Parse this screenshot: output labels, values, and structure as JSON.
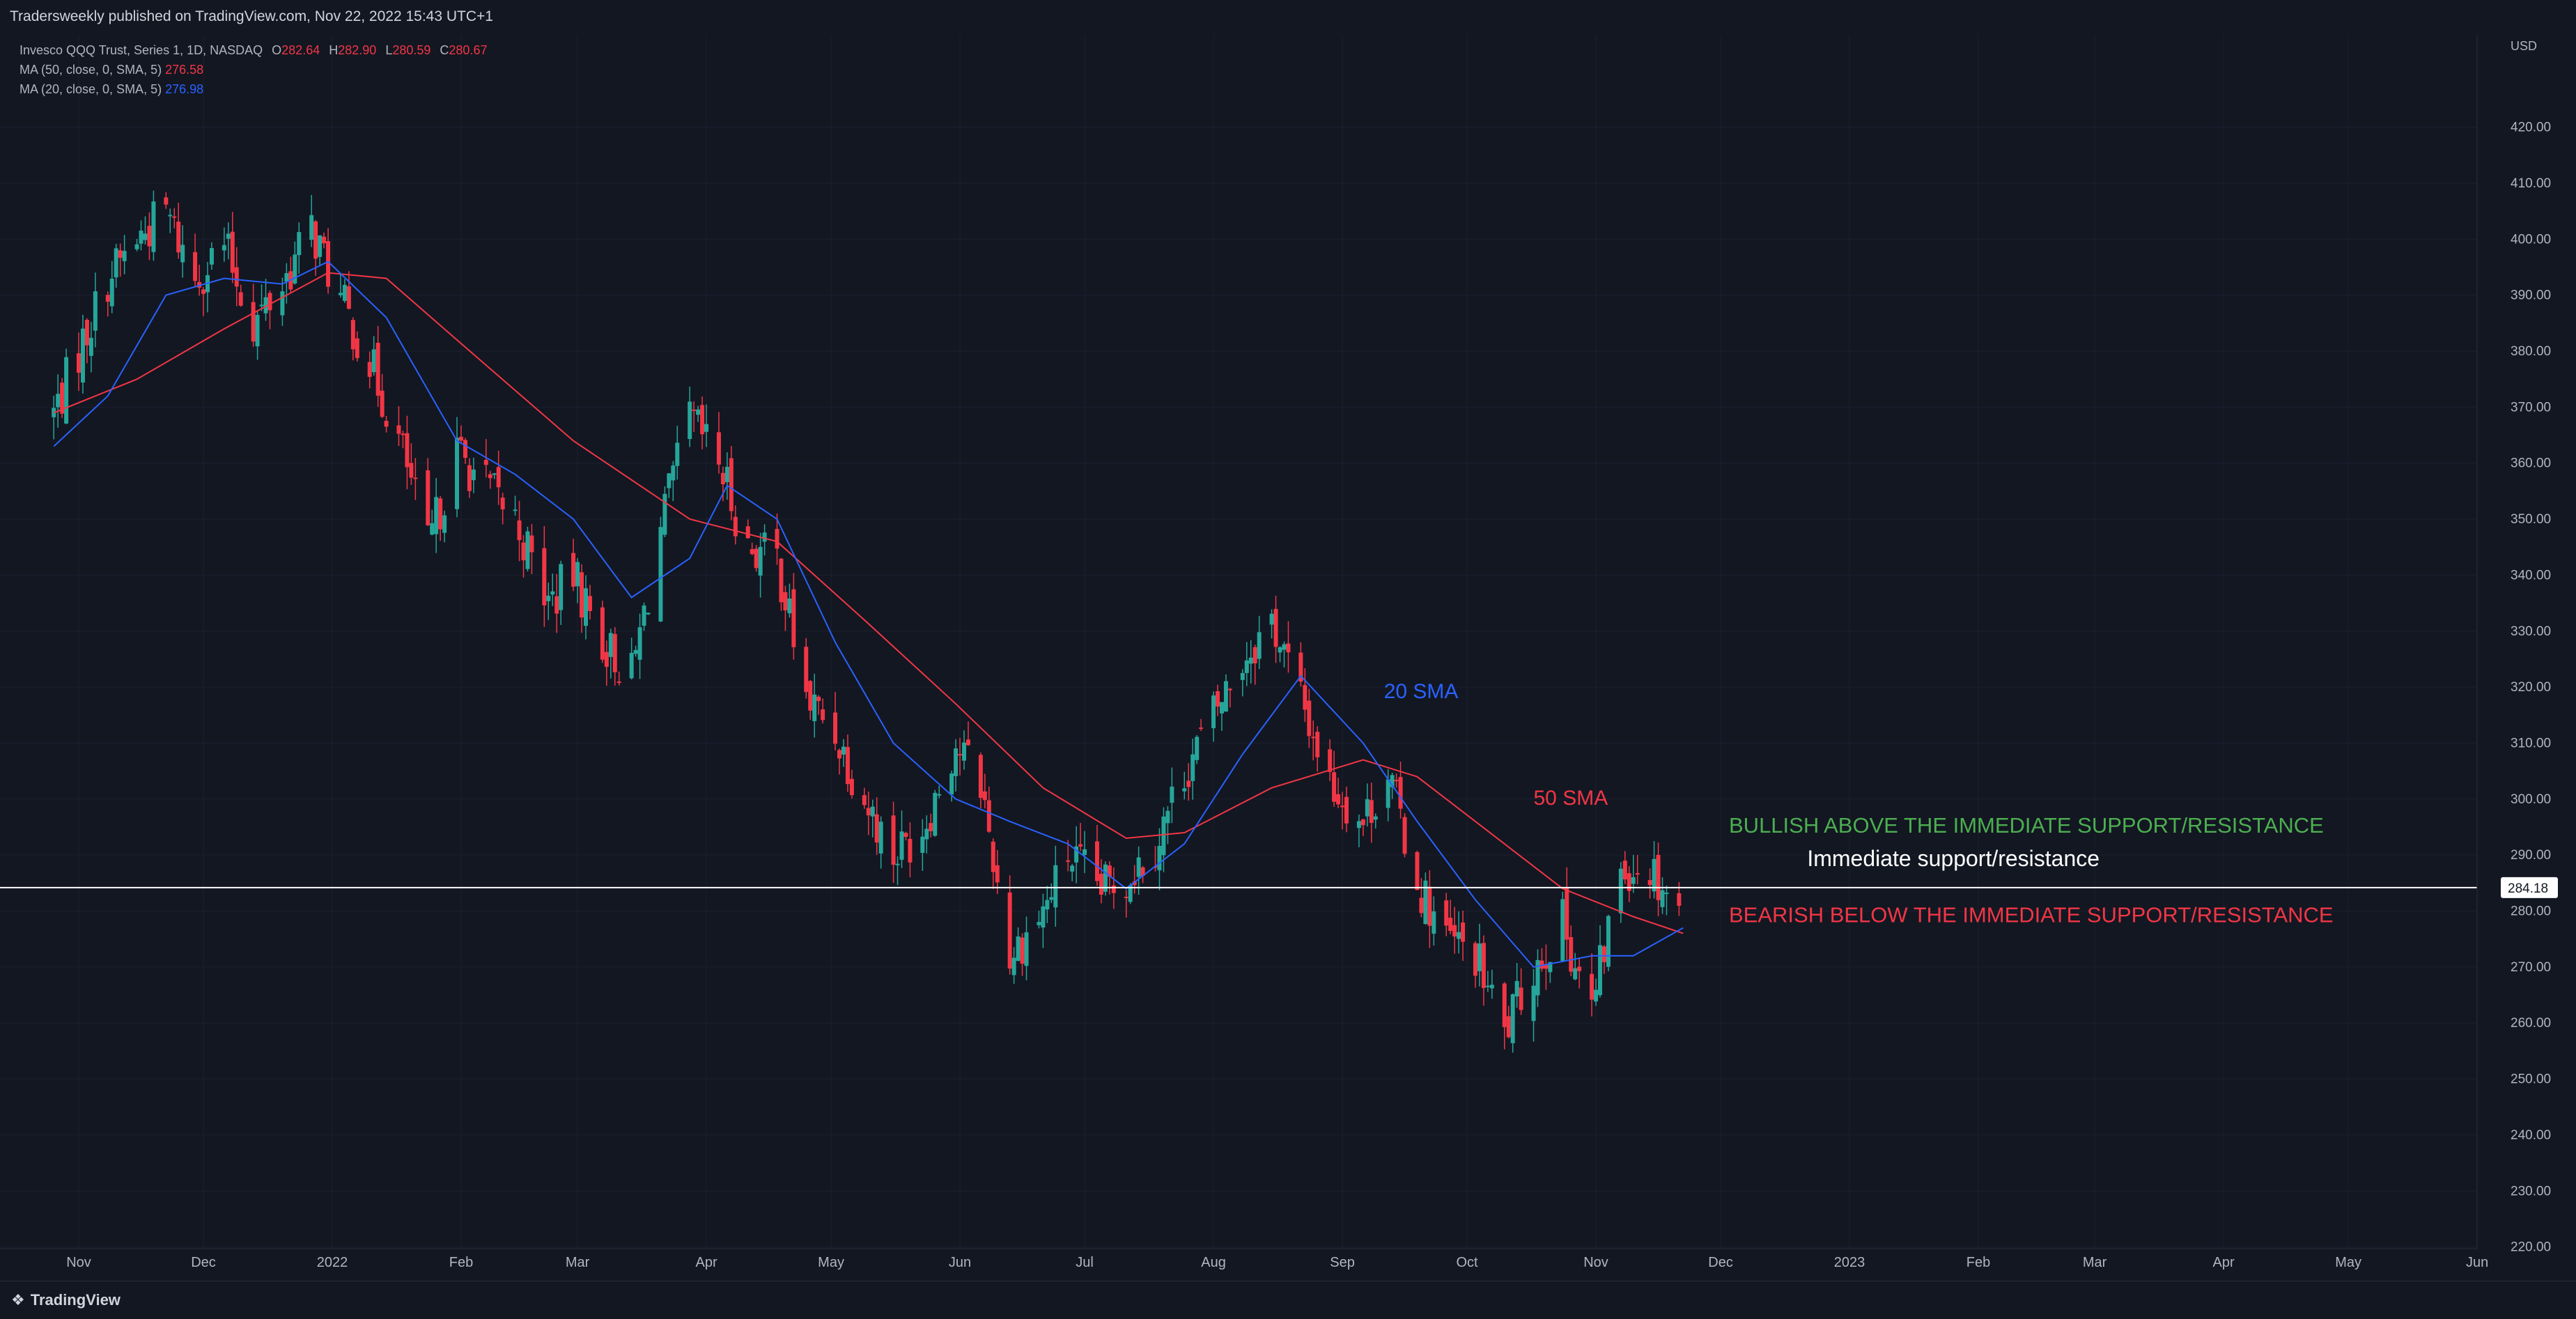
{
  "header": {
    "publish_text": "Tradersweekly published on TradingView.com, Nov 22, 2022 15:43 UTC+1"
  },
  "legend": {
    "symbol": "Invesco QQQ Trust, Series 1, 1D, NASDAQ",
    "open_label": "O",
    "open": "282.64",
    "high_label": "H",
    "high": "282.90",
    "low_label": "L",
    "low": "280.59",
    "close_label": "C",
    "close": "280.67",
    "ma50_label": "MA (50, close, 0, SMA, 5)",
    "ma50_value": "276.58",
    "ma20_label": "MA (20, close, 0, SMA, 5)",
    "ma20_value": "276.98"
  },
  "footer": {
    "brand": "TradingView"
  },
  "colors": {
    "background": "#131722",
    "up": "#26a69a",
    "down": "#f23645",
    "ma20": "#2962ff",
    "ma50": "#f23645",
    "bullish_text": "#4caf50",
    "bearish_text": "#f23645",
    "level_line": "#ffffff"
  },
  "chart_data": {
    "type": "candlestick",
    "currency_label": "USD",
    "y_ticks": [
      "420.00",
      "410.00",
      "400.00",
      "390.00",
      "380.00",
      "370.00",
      "360.00",
      "350.00",
      "340.00",
      "330.00",
      "320.00",
      "310.00",
      "300.00",
      "290.00",
      "280.00",
      "270.00",
      "260.00",
      "250.00",
      "240.00",
      "230.00",
      "220.00"
    ],
    "x_ticks": [
      "Nov",
      "Dec",
      "2022",
      "Feb",
      "Mar",
      "Apr",
      "May",
      "Jun",
      "Jul",
      "Aug",
      "Sep",
      "Oct",
      "Nov",
      "Dec",
      "2023",
      "Feb",
      "Mar",
      "Apr",
      "May",
      "Jun"
    ],
    "ylim": [
      216,
      426
    ],
    "current_price_label": "284.18",
    "support_level": 284.18,
    "annotations": {
      "sma20_label": "20 SMA",
      "sma50_label": "50 SMA",
      "bullish": "BULLISH ABOVE THE IMMEDIATE SUPPORT/RESISTANCE",
      "level": "Immediate support/resistance",
      "bearish": "BEARISH BELOW THE IMMEDIATE SUPPORT/RESISTANCE"
    },
    "close_path": [
      [
        "2021-10-26",
        369
      ],
      [
        "2021-11-01",
        380
      ],
      [
        "2021-11-08",
        393
      ],
      [
        "2021-11-15",
        400
      ],
      [
        "2021-11-22",
        405
      ],
      [
        "2021-11-29",
        393
      ],
      [
        "2021-12-06",
        399
      ],
      [
        "2021-12-13",
        385
      ],
      [
        "2021-12-20",
        392
      ],
      [
        "2021-12-27",
        402
      ],
      [
        "2022-01-03",
        389
      ],
      [
        "2022-01-10",
        378
      ],
      [
        "2022-01-18",
        362
      ],
      [
        "2022-01-24",
        345
      ],
      [
        "2022-01-31",
        362
      ],
      [
        "2022-02-07",
        356
      ],
      [
        "2022-02-14",
        350
      ],
      [
        "2022-02-22",
        335
      ],
      [
        "2022-02-28",
        340
      ],
      [
        "2022-03-07",
        328
      ],
      [
        "2022-03-14",
        322
      ],
      [
        "2022-03-21",
        348
      ],
      [
        "2022-03-28",
        368
      ],
      [
        "2022-04-04",
        360
      ],
      [
        "2022-04-11",
        345
      ],
      [
        "2022-04-18",
        343
      ],
      [
        "2022-04-25",
        318
      ],
      [
        "2022-05-02",
        312
      ],
      [
        "2022-05-09",
        300
      ],
      [
        "2022-05-16",
        290
      ],
      [
        "2022-05-23",
        295
      ],
      [
        "2022-05-31",
        310
      ],
      [
        "2022-06-06",
        303
      ],
      [
        "2022-06-13",
        272
      ],
      [
        "2022-06-21",
        280
      ],
      [
        "2022-06-27",
        290
      ],
      [
        "2022-07-05",
        284
      ],
      [
        "2022-07-11",
        286
      ],
      [
        "2022-07-18",
        292
      ],
      [
        "2022-07-25",
        305
      ],
      [
        "2022-08-01",
        315
      ],
      [
        "2022-08-08",
        325
      ],
      [
        "2022-08-15",
        332
      ],
      [
        "2022-08-22",
        318
      ],
      [
        "2022-08-29",
        303
      ],
      [
        "2022-09-06",
        296
      ],
      [
        "2022-09-12",
        305
      ],
      [
        "2022-09-19",
        285
      ],
      [
        "2022-09-26",
        275
      ],
      [
        "2022-10-03",
        272
      ],
      [
        "2022-10-10",
        258
      ],
      [
        "2022-10-17",
        270
      ],
      [
        "2022-10-24",
        278
      ],
      [
        "2022-10-31",
        262
      ],
      [
        "2022-11-07",
        288
      ],
      [
        "2022-11-14",
        288
      ],
      [
        "2022-11-21",
        281
      ]
    ],
    "sma20_path": [
      [
        "2021-10-26",
        363
      ],
      [
        "2021-11-08",
        372
      ],
      [
        "2021-11-22",
        390
      ],
      [
        "2021-12-06",
        393
      ],
      [
        "2021-12-20",
        392
      ],
      [
        "2021-12-31",
        396
      ],
      [
        "2022-01-14",
        386
      ],
      [
        "2022-01-31",
        364
      ],
      [
        "2022-02-14",
        358
      ],
      [
        "2022-02-28",
        350
      ],
      [
        "2022-03-14",
        336
      ],
      [
        "2022-03-28",
        343
      ],
      [
        "2022-04-06",
        356
      ],
      [
        "2022-04-18",
        350
      ],
      [
        "2022-05-02",
        328
      ],
      [
        "2022-05-16",
        310
      ],
      [
        "2022-05-31",
        300
      ],
      [
        "2022-06-13",
        296
      ],
      [
        "2022-06-27",
        292
      ],
      [
        "2022-07-11",
        284
      ],
      [
        "2022-07-25",
        292
      ],
      [
        "2022-08-08",
        308
      ],
      [
        "2022-08-22",
        322
      ],
      [
        "2022-09-06",
        310
      ],
      [
        "2022-09-19",
        296
      ],
      [
        "2022-10-03",
        282
      ],
      [
        "2022-10-17",
        270
      ],
      [
        "2022-10-31",
        272
      ],
      [
        "2022-11-10",
        272
      ],
      [
        "2022-11-22",
        277
      ]
    ],
    "sma50_path": [
      [
        "2021-10-26",
        369
      ],
      [
        "2021-11-15",
        375
      ],
      [
        "2021-12-06",
        384
      ],
      [
        "2021-12-31",
        394
      ],
      [
        "2022-01-14",
        393
      ],
      [
        "2022-01-31",
        382
      ],
      [
        "2022-02-28",
        364
      ],
      [
        "2022-03-28",
        350
      ],
      [
        "2022-04-18",
        346
      ],
      [
        "2022-05-09",
        332
      ],
      [
        "2022-05-31",
        317
      ],
      [
        "2022-06-21",
        302
      ],
      [
        "2022-07-11",
        293
      ],
      [
        "2022-07-25",
        294
      ],
      [
        "2022-08-15",
        302
      ],
      [
        "2022-09-06",
        307
      ],
      [
        "2022-09-19",
        304
      ],
      [
        "2022-10-03",
        296
      ],
      [
        "2022-10-24",
        284
      ],
      [
        "2022-11-10",
        279
      ],
      [
        "2022-11-22",
        276
      ]
    ]
  }
}
